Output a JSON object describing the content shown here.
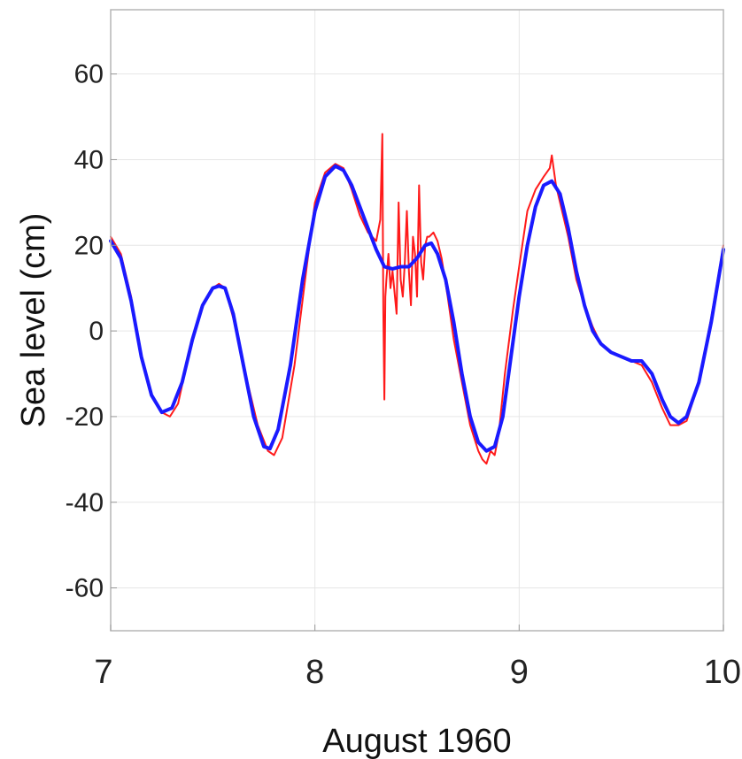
{
  "chart_data": {
    "type": "line",
    "title": "",
    "xlabel": "August 1960",
    "ylabel": "Sea level (cm)",
    "xlim": [
      7,
      10
    ],
    "ylim": [
      -70,
      75
    ],
    "xticks": [
      7,
      8,
      9,
      10
    ],
    "xtick_labels": [
      "7",
      "8",
      "9",
      "10"
    ],
    "yticks": [
      -60,
      -40,
      -20,
      0,
      20,
      40,
      60
    ],
    "ytick_labels": [
      "-60",
      "-40",
      "-20",
      "0",
      "20",
      "40",
      "60"
    ],
    "grid": true,
    "legend": "none",
    "colors": {
      "observed": "#ff1a1a",
      "smoothed": "#1a1aff"
    },
    "series": [
      {
        "key": "observed",
        "x": [
          7.0,
          7.05,
          7.1,
          7.15,
          7.2,
          7.25,
          7.29,
          7.33,
          7.38,
          7.44,
          7.5,
          7.53,
          7.56,
          7.6,
          7.66,
          7.72,
          7.77,
          7.8,
          7.84,
          7.9,
          7.96,
          8.0,
          8.05,
          8.1,
          8.14,
          8.18,
          8.22,
          8.26,
          8.3,
          8.32,
          8.33,
          8.335,
          8.34,
          8.345,
          8.35,
          8.36,
          8.37,
          8.38,
          8.39,
          8.4,
          8.41,
          8.42,
          8.43,
          8.44,
          8.45,
          8.46,
          8.47,
          8.48,
          8.49,
          8.5,
          8.51,
          8.52,
          8.53,
          8.54,
          8.55,
          8.56,
          8.58,
          8.6,
          8.62,
          8.65,
          8.68,
          8.72,
          8.76,
          8.8,
          8.82,
          8.84,
          8.86,
          8.88,
          8.9,
          8.93,
          8.97,
          9.0,
          9.04,
          9.08,
          9.12,
          9.15,
          9.16,
          9.18,
          9.2,
          9.24,
          9.28,
          9.32,
          9.36,
          9.4,
          9.45,
          9.5,
          9.55,
          9.6,
          9.65,
          9.7,
          9.74,
          9.78,
          9.82,
          9.88,
          9.94,
          10.0
        ],
        "y": [
          22,
          18,
          8,
          -6,
          -15,
          -19,
          -20,
          -17,
          -6,
          5,
          10,
          11,
          10,
          3,
          -10,
          -22,
          -28,
          -29,
          -25,
          -8,
          15,
          30,
          37,
          39,
          38,
          33,
          27,
          23,
          21,
          26,
          46,
          5,
          -16,
          8,
          12,
          18,
          10,
          14,
          9,
          4,
          30,
          12,
          8,
          16,
          28,
          14,
          6,
          22,
          18,
          8,
          34,
          16,
          12,
          20,
          22,
          22,
          23,
          21,
          17,
          8,
          -2,
          -12,
          -22,
          -28,
          -30,
          -31,
          -28,
          -29,
          -24,
          -10,
          5,
          15,
          28,
          33,
          36,
          38,
          41,
          34,
          30,
          22,
          12,
          6,
          1,
          -3,
          -5,
          -6,
          -7,
          -8,
          -12,
          -18,
          -22,
          -22,
          -21,
          -12,
          3,
          20
        ]
      },
      {
        "key": "smoothed",
        "x": [
          7.0,
          7.05,
          7.1,
          7.15,
          7.2,
          7.25,
          7.3,
          7.35,
          7.4,
          7.45,
          7.5,
          7.53,
          7.56,
          7.6,
          7.65,
          7.7,
          7.75,
          7.78,
          7.82,
          7.88,
          7.94,
          8.0,
          8.05,
          8.1,
          8.14,
          8.18,
          8.22,
          8.26,
          8.3,
          8.34,
          8.38,
          8.42,
          8.46,
          8.5,
          8.54,
          8.57,
          8.6,
          8.64,
          8.68,
          8.72,
          8.76,
          8.8,
          8.84,
          8.88,
          8.92,
          8.96,
          9.0,
          9.04,
          9.08,
          9.12,
          9.16,
          9.2,
          9.24,
          9.28,
          9.32,
          9.36,
          9.4,
          9.45,
          9.5,
          9.55,
          9.6,
          9.65,
          9.7,
          9.74,
          9.78,
          9.82,
          9.88,
          9.94,
          10.0
        ],
        "y": [
          21,
          17,
          7,
          -6,
          -15,
          -19,
          -18,
          -12,
          -2,
          6,
          10,
          10.5,
          10,
          4,
          -8,
          -20,
          -27,
          -27.5,
          -23,
          -8,
          12,
          28,
          36,
          38.5,
          37.5,
          34,
          29,
          24,
          19,
          15,
          14.5,
          15,
          15,
          17,
          20,
          20.5,
          18,
          12,
          2,
          -10,
          -20,
          -26,
          -28,
          -27,
          -20,
          -6,
          8,
          20,
          29,
          34,
          35,
          32,
          24,
          14,
          6,
          0,
          -3,
          -5,
          -6,
          -7,
          -7,
          -10,
          -16,
          -20,
          -21.5,
          -20,
          -12,
          2,
          19
        ]
      }
    ]
  }
}
